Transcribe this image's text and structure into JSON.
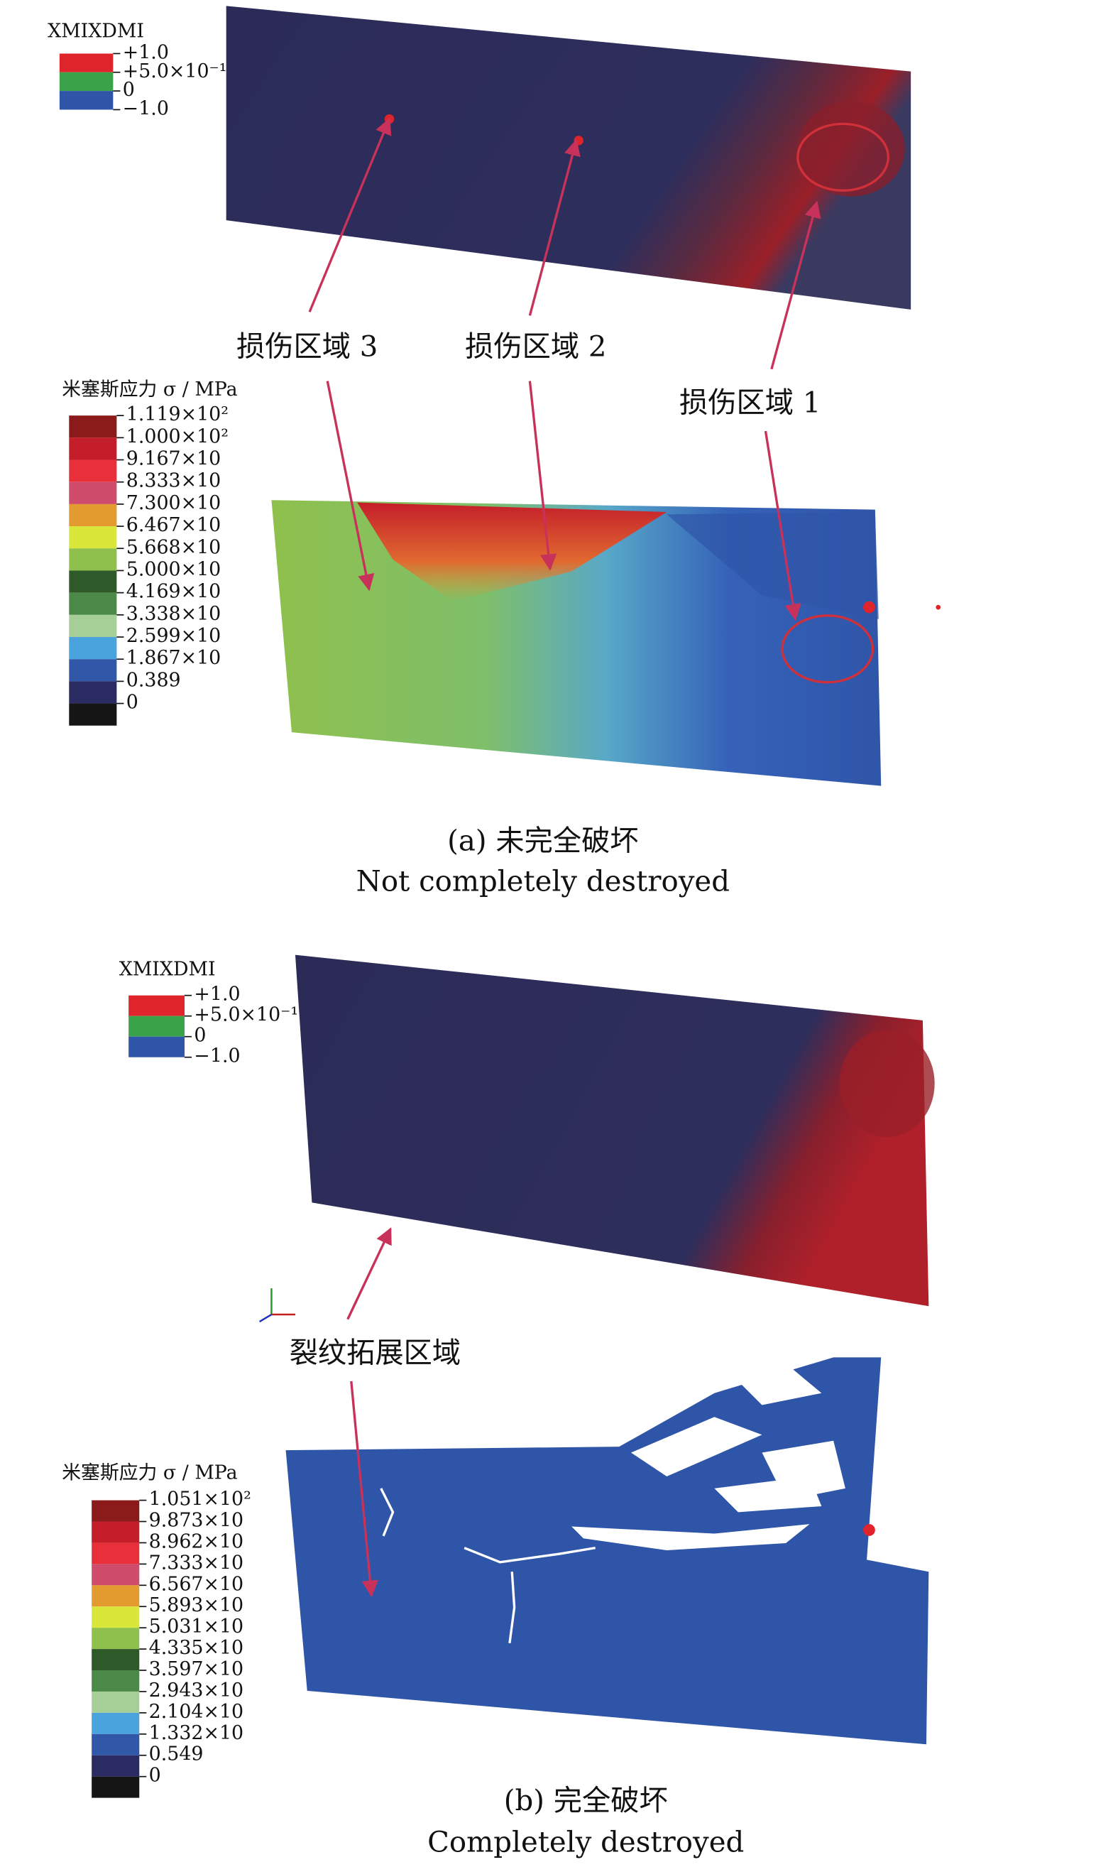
{
  "panels": [
    {
      "damage_legend": {
        "title": "XMIXDMI",
        "labels": [
          "+1.0",
          "+5.0×10⁻¹",
          "0",
          "−1.0"
        ],
        "colors": [
          "#e0242c",
          "#3aa34a",
          "#2f55a8"
        ]
      },
      "stress_legend": {
        "title": "米塞斯应力 σ / MPa",
        "labels": [
          "1.119×10²",
          "1.000×10²",
          "9.167×10",
          "8.333×10",
          "7.300×10",
          "6.467×10",
          "5.668×10",
          "5.000×10",
          "4.169×10",
          "3.338×10",
          "2.599×10",
          "1.867×10",
          "0.389",
          "0"
        ],
        "colors": [
          "#8b1a1a",
          "#c41e2a",
          "#e8303a",
          "#d04c6c",
          "#e39a2e",
          "#d9e63a",
          "#8fc04d",
          "#2e5a2a",
          "#4b8a46",
          "#a6cf98",
          "#4aa3dc",
          "#3158a8",
          "#2b2b63",
          "#151515"
        ]
      },
      "annotations": [
        "损伤区域 3",
        "损伤区域 2",
        "损伤区域 1"
      ],
      "caption": [
        "(a) 未完全破坏",
        "Not completely destroyed"
      ]
    },
    {
      "damage_legend": {
        "title": "XMIXDMI",
        "labels": [
          "+1.0",
          "+5.0×10⁻¹",
          "0",
          "−1.0"
        ],
        "colors": [
          "#e0242c",
          "#3aa34a",
          "#2f55a8"
        ]
      },
      "stress_legend": {
        "title": "米塞斯应力 σ / MPa",
        "labels": [
          "1.051×10²",
          "9.873×10",
          "8.962×10",
          "7.333×10",
          "6.567×10",
          "5.893×10",
          "5.031×10",
          "4.335×10",
          "3.597×10",
          "2.943×10",
          "2.104×10",
          "1.332×10",
          "0.549",
          "0"
        ],
        "colors": [
          "#8b1a1a",
          "#c41e2a",
          "#e8303a",
          "#d04c6c",
          "#e39a2e",
          "#d9e63a",
          "#8fc04d",
          "#2e5a2a",
          "#4b8a46",
          "#a6cf98",
          "#4aa3dc",
          "#3158a8",
          "#2b2b63",
          "#151515"
        ]
      },
      "annotations": [
        "裂纹拓展区域"
      ],
      "caption": [
        "(b) 完全破坏",
        "Completely destroyed"
      ]
    }
  ]
}
